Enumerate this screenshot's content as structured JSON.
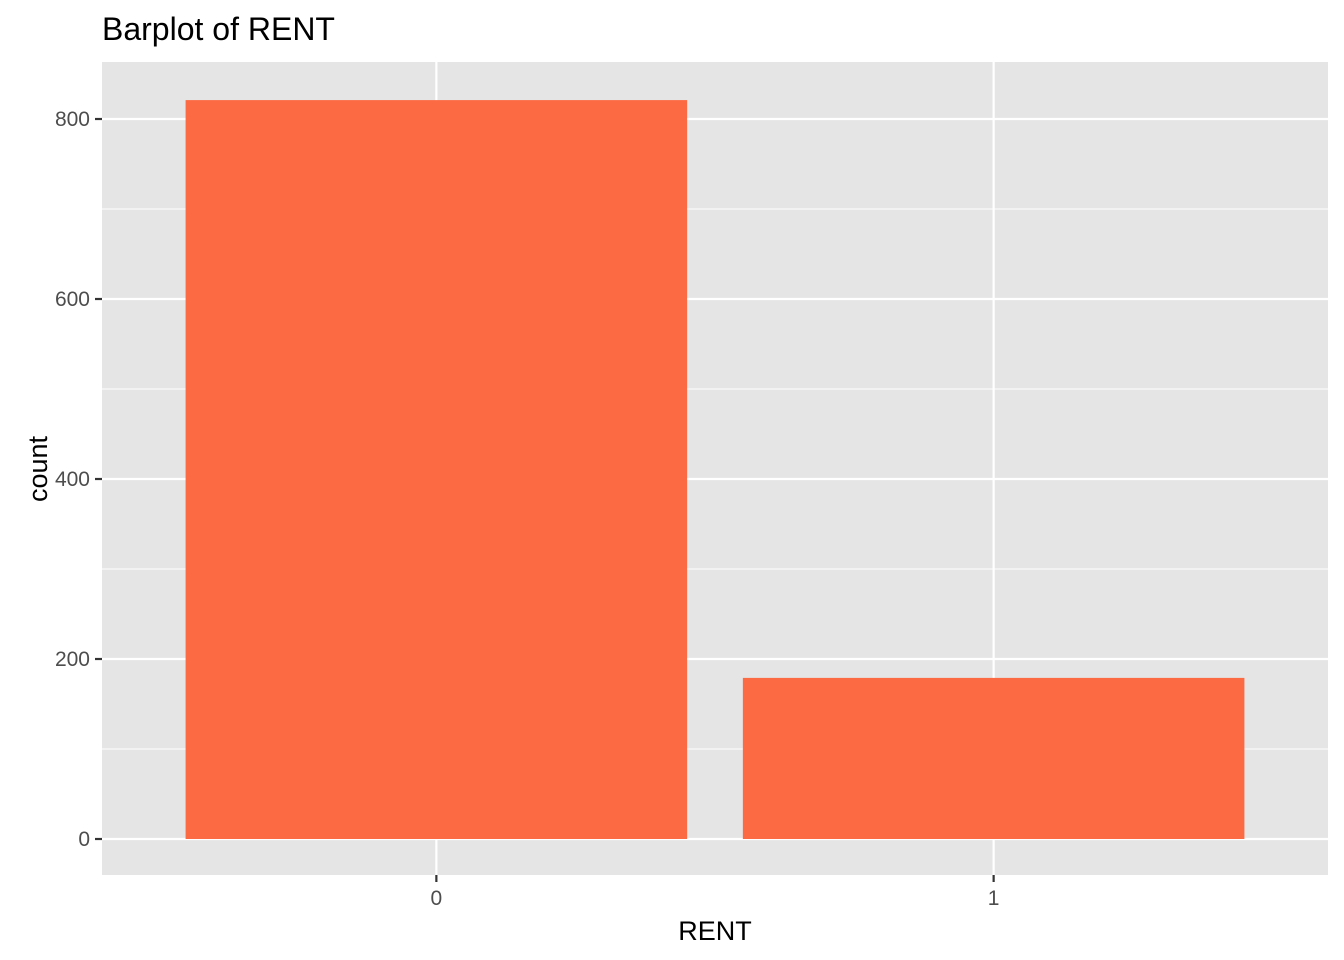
{
  "chart_data": {
    "type": "bar",
    "title": "Barplot of RENT",
    "xlabel": "RENT",
    "ylabel": "count",
    "categories": [
      "0",
      "1"
    ],
    "values": [
      821,
      179
    ],
    "ylim": [
      -41,
      860
    ],
    "yticks": [
      0,
      200,
      400,
      600,
      800
    ],
    "ytick_labels": [
      "0",
      "200",
      "400",
      "600",
      "800"
    ],
    "y_minor_ticks": [
      100,
      300,
      500,
      700
    ],
    "grid": true,
    "legend": "none",
    "bar_color": "#FC6A43",
    "panel_background": "#E5E5E5",
    "grid_color": "#FFFFFF"
  }
}
